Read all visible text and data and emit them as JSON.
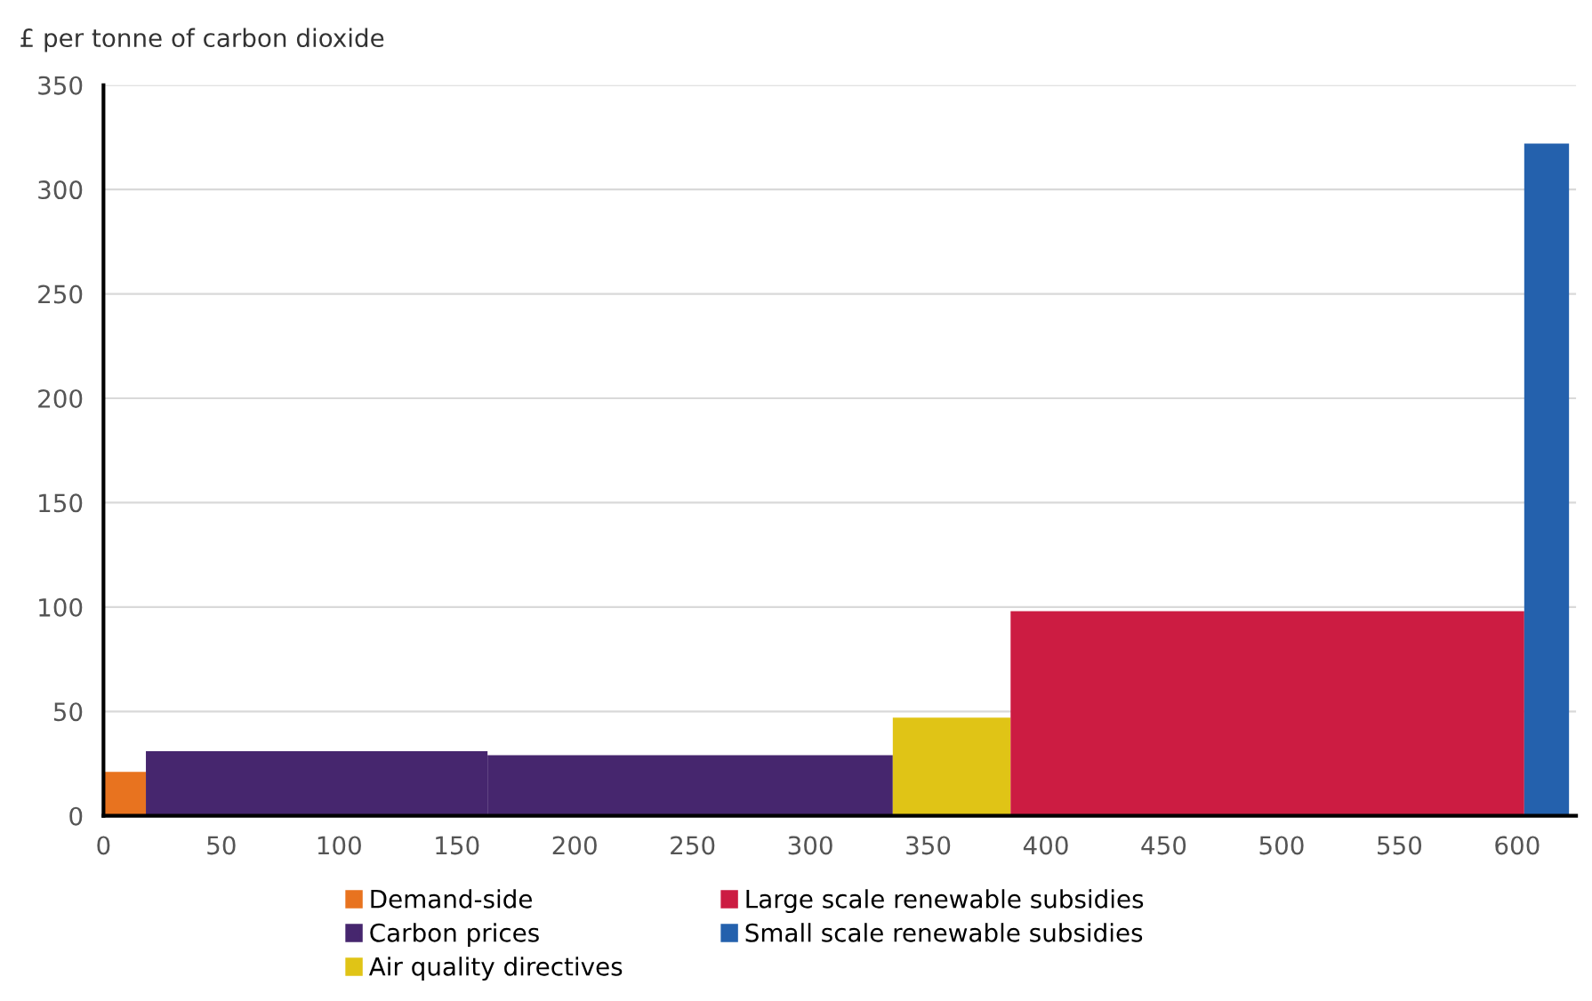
{
  "chart_data": {
    "type": "histogram",
    "ylabel": "£ per tonne of carbon dioxide",
    "bins": [
      0,
      18,
      163,
      335,
      385,
      603,
      622
    ],
    "series": [
      {
        "name": "Demand-side",
        "color": "#e8731f",
        "values": [
          21,
          null,
          null,
          null,
          null,
          null
        ]
      },
      {
        "name": "Carbon prices",
        "color": "#46266e",
        "values": [
          null,
          31,
          29,
          null,
          null,
          null
        ]
      },
      {
        "name": "Air quality directives",
        "color": "#e0c416",
        "values": [
          null,
          null,
          null,
          47,
          null,
          null
        ]
      },
      {
        "name": "Large scale renewable subsidies",
        "color": "#cc1c42",
        "values": [
          null,
          null,
          null,
          null,
          98,
          null
        ]
      },
      {
        "name": "Small scale renewable subsidies",
        "color": "#2461ad",
        "values": [
          null,
          null,
          null,
          null,
          null,
          322
        ]
      }
    ],
    "xlim": [
      0,
      625
    ],
    "xticks": [
      0,
      50,
      100,
      150,
      200,
      250,
      300,
      350,
      400,
      450,
      500,
      550,
      600
    ],
    "ylim": [
      0,
      350
    ],
    "yticks": [
      0,
      50,
      100,
      150,
      200,
      250,
      300,
      350
    ],
    "grid": "y",
    "legend": "bottom"
  }
}
